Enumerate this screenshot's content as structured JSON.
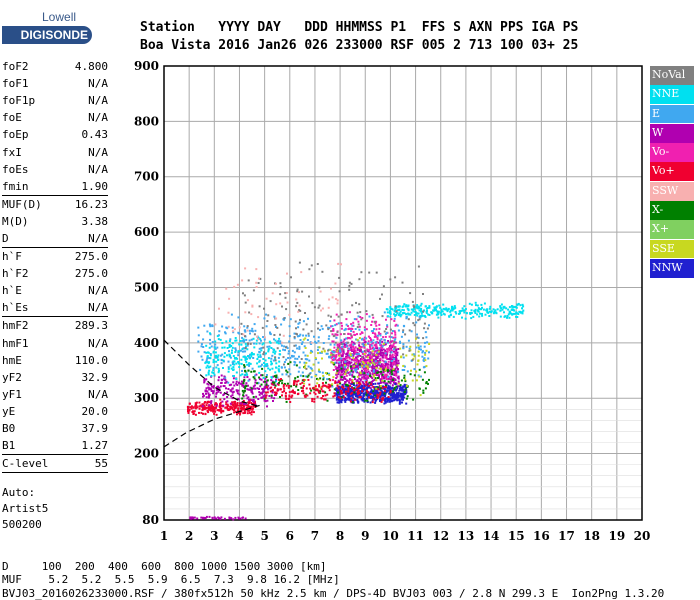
{
  "logo": {
    "top": "Lowell",
    "bottom": "DIGISONDE"
  },
  "header": {
    "labels": "Station   YYYY DAY   DDD HHMMSS P1  FFS S AXN PPS IGA PS",
    "values": "Boa Vista 2016 Jan26 026 233000 RSF 005 2 713 100 03+ 25"
  },
  "params": [
    {
      "k": "foF2",
      "v": "4.800"
    },
    {
      "k": "foF1",
      "v": "N/A"
    },
    {
      "k": "foF1p",
      "v": "N/A"
    },
    {
      "k": "foE",
      "v": "N/A"
    },
    {
      "k": "foEp",
      "v": "0.43"
    },
    {
      "k": "fxI",
      "v": "N/A"
    },
    {
      "k": "foEs",
      "v": "N/A"
    },
    {
      "k": "fmin",
      "v": "1.90",
      "sep": true
    },
    {
      "k": "MUF(D)",
      "v": "16.23"
    },
    {
      "k": "M(D)",
      "v": "3.38"
    },
    {
      "k": "D",
      "v": "N/A",
      "sep": true
    },
    {
      "k": "h`F",
      "v": "275.0"
    },
    {
      "k": "h`F2",
      "v": "275.0"
    },
    {
      "k": "h`E",
      "v": "N/A"
    },
    {
      "k": "h`Es",
      "v": "N/A",
      "sep": true
    },
    {
      "k": "hmF2",
      "v": "289.3"
    },
    {
      "k": "hmF1",
      "v": "N/A"
    },
    {
      "k": "hmE",
      "v": "110.0"
    },
    {
      "k": "yF2",
      "v": "32.9"
    },
    {
      "k": "yF1",
      "v": "N/A"
    },
    {
      "k": "yE",
      "v": "20.0"
    },
    {
      "k": "B0",
      "v": "37.9"
    },
    {
      "k": "B1",
      "v": "1.27",
      "sep": true
    },
    {
      "k": "C-level",
      "v": "55",
      "sep": true
    }
  ],
  "auto": {
    "l1": "Auto:",
    "l2": "Artist5",
    "l3": "500200"
  },
  "legend": [
    {
      "label": "NoVal",
      "color": "#808080"
    },
    {
      "label": "NNE",
      "color": "#00e0f0"
    },
    {
      "label": "E",
      "color": "#40a8f0"
    },
    {
      "label": "W",
      "color": "#b000b0"
    },
    {
      "label": "Vo-",
      "color": "#f020b0"
    },
    {
      "label": "Vo+",
      "color": "#f00030"
    },
    {
      "label": "SSW",
      "color": "#f8b0b0"
    },
    {
      "label": "X-",
      "color": "#008000"
    },
    {
      "label": "X+",
      "color": "#80d060"
    },
    {
      "label": "SSE",
      "color": "#c8d820"
    },
    {
      "label": "NNW",
      "color": "#2020d0"
    }
  ],
  "footer": {
    "d_row": "D     100  200  400  600  800 1000 1500 3000 [km]",
    "muf_row": "MUF    5.2  5.2  5.5  5.9  6.5  7.3  9.8 16.2 [MHz]",
    "info": "BVJ03_2016026233000.RSF / 380fx512h 50 kHz 2.5 km / DPS-4D BVJ03 003 / 2.8 N 299.3 E  Ion2Png 1.3.20"
  },
  "chart_data": {
    "type": "scatter",
    "title": "",
    "xlabel": "",
    "ylabel": "",
    "xlim": [
      1,
      20
    ],
    "ylim": [
      80,
      900
    ],
    "xticks": [
      1,
      2,
      3,
      4,
      5,
      6,
      7,
      8,
      9,
      10,
      11,
      12,
      13,
      14,
      15,
      16,
      17,
      18,
      19,
      20
    ],
    "yticks": [
      80,
      200,
      300,
      400,
      500,
      600,
      700,
      800,
      900
    ],
    "grid": true,
    "clusters": [
      {
        "color": "#f00030",
        "x": [
          1.9,
          4.6
        ],
        "y": [
          270,
          300
        ],
        "n": 260
      },
      {
        "color": "#b000b0",
        "x": [
          2.5,
          5.5
        ],
        "y": [
          285,
          350
        ],
        "n": 220
      },
      {
        "color": "#b000b0",
        "x": [
          7.8,
          10.3
        ],
        "y": [
          310,
          410
        ],
        "n": 650
      },
      {
        "color": "#2020d0",
        "x": [
          7.8,
          10.6
        ],
        "y": [
          290,
          330
        ],
        "n": 500
      },
      {
        "color": "#f020b0",
        "x": [
          7.6,
          10.2
        ],
        "y": [
          320,
          460
        ],
        "n": 320
      },
      {
        "color": "#00e0f0",
        "x": [
          9.8,
          15.3
        ],
        "y": [
          445,
          475
        ],
        "n": 300
      },
      {
        "color": "#40a8f0",
        "x": [
          2.3,
          11.5
        ],
        "y": [
          320,
          460
        ],
        "n": 450
      },
      {
        "color": "#00e0f0",
        "x": [
          2.6,
          5.6
        ],
        "y": [
          330,
          420
        ],
        "n": 200
      },
      {
        "color": "#008000",
        "x": [
          4.0,
          11.5
        ],
        "y": [
          290,
          370
        ],
        "n": 170
      },
      {
        "color": "#c8d820",
        "x": [
          6.5,
          11.5
        ],
        "y": [
          300,
          420
        ],
        "n": 120
      },
      {
        "color": "#f00030",
        "x": [
          5.0,
          10.0
        ],
        "y": [
          290,
          340
        ],
        "n": 200
      },
      {
        "color": "#808080",
        "x": [
          4.0,
          11.5
        ],
        "y": [
          330,
          560
        ],
        "n": 170
      },
      {
        "color": "#f8b0b0",
        "x": [
          3.0,
          8.0
        ],
        "y": [
          380,
          560
        ],
        "n": 60
      },
      {
        "color": "#b000b0",
        "x": [
          2.0,
          4.3
        ],
        "y": [
          82,
          88
        ],
        "n": 40
      }
    ],
    "trace_lower": [
      [
        1.0,
        212
      ],
      [
        1.9,
        238
      ],
      [
        3.0,
        262
      ],
      [
        4.0,
        276
      ],
      [
        4.8,
        287
      ]
    ],
    "trace_upper": [
      [
        1.0,
        405
      ],
      [
        2.0,
        360
      ],
      [
        3.0,
        320
      ],
      [
        4.0,
        295
      ],
      [
        4.8,
        285
      ]
    ]
  }
}
